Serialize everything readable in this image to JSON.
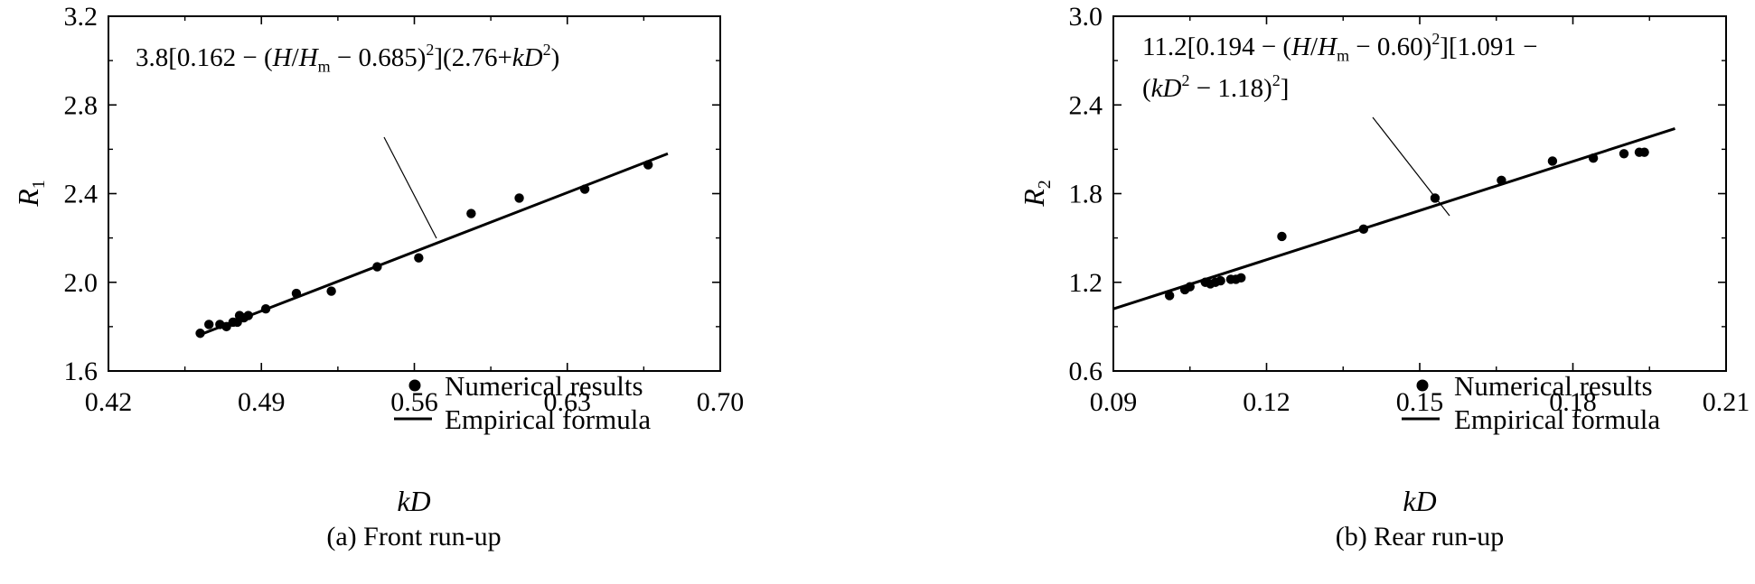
{
  "chart_data": [
    {
      "type": "scatter",
      "caption": "(a) Front run-up",
      "xlabel": "kD",
      "ylabel": "R",
      "ylabel_sub": "1",
      "xlim": [
        0.42,
        0.7
      ],
      "ylim": [
        1.6,
        3.2
      ],
      "x_ticks": [
        0.42,
        0.49,
        0.56,
        0.63,
        0.7
      ],
      "x_tick_labels": [
        "0.42",
        "0.49",
        "0.56",
        "0.63",
        "0.70"
      ],
      "y_ticks": [
        1.6,
        2.0,
        2.4,
        2.8,
        3.2
      ],
      "y_tick_labels": [
        "1.6",
        "2.0",
        "2.4",
        "2.8",
        "3.2"
      ],
      "grid": false,
      "legend_position": "bottom-right",
      "series": [
        {
          "name": "Numerical results",
          "kind": "points",
          "x": [
            0.462,
            0.466,
            0.471,
            0.474,
            0.477,
            0.479,
            0.48,
            0.482,
            0.484,
            0.492,
            0.506,
            0.522,
            0.543,
            0.562,
            0.586,
            0.608,
            0.638,
            0.667
          ],
          "y": [
            1.77,
            1.81,
            1.81,
            1.8,
            1.82,
            1.82,
            1.85,
            1.84,
            1.85,
            1.88,
            1.95,
            1.96,
            2.07,
            2.11,
            2.31,
            2.38,
            2.42,
            2.53
          ]
        },
        {
          "name": "Empirical formula",
          "kind": "line",
          "x": [
            0.461,
            0.676
          ],
          "y": [
            1.76,
            2.58
          ]
        }
      ],
      "annotation": {
        "parts": [
          {
            "t": "3.8[0.162 − ("
          },
          {
            "t": "H",
            "i": true
          },
          {
            "t": "/"
          },
          {
            "t": "H",
            "i": true
          },
          {
            "t": "m",
            "sub": true
          },
          {
            "t": " − 0.685)"
          },
          {
            "t": "2",
            "sup": true
          },
          {
            "t": "](2.76+"
          },
          {
            "t": "kD",
            "i": true
          },
          {
            "t": "2",
            "sup": true
          },
          {
            "t": ")"
          }
        ]
      }
    },
    {
      "type": "scatter",
      "caption": "(b) Rear run-up",
      "xlabel": "kD",
      "ylabel": "R",
      "ylabel_sub": "2",
      "xlim": [
        0.09,
        0.21
      ],
      "ylim": [
        0.6,
        3.0
      ],
      "x_ticks": [
        0.09,
        0.12,
        0.15,
        0.18,
        0.21
      ],
      "x_tick_labels": [
        "0.09",
        "0.12",
        "0.15",
        "0.18",
        "0.21"
      ],
      "y_ticks": [
        0.6,
        1.2,
        1.8,
        2.4,
        3.0
      ],
      "y_tick_labels": [
        "0.6",
        "1.2",
        "1.8",
        "2.4",
        "3.0"
      ],
      "grid": false,
      "legend_position": "bottom-right",
      "series": [
        {
          "name": "Numerical results",
          "kind": "points",
          "x": [
            0.101,
            0.104,
            0.105,
            0.108,
            0.109,
            0.11,
            0.111,
            0.113,
            0.114,
            0.115,
            0.123,
            0.139,
            0.153,
            0.166,
            0.176,
            0.184,
            0.19,
            0.193,
            0.194
          ],
          "y": [
            1.11,
            1.15,
            1.17,
            1.2,
            1.19,
            1.2,
            1.21,
            1.22,
            1.22,
            1.23,
            1.51,
            1.56,
            1.77,
            1.89,
            2.02,
            2.04,
            2.07,
            2.08,
            2.08
          ]
        },
        {
          "name": "Empirical formula",
          "kind": "line",
          "x": [
            0.09,
            0.2
          ],
          "y": [
            1.02,
            2.24
          ]
        }
      ],
      "annotation": {
        "lines": [
          [
            {
              "t": "11.2[0.194 − ("
            },
            {
              "t": "H",
              "i": true
            },
            {
              "t": "/"
            },
            {
              "t": "H",
              "i": true
            },
            {
              "t": "m",
              "sub": true
            },
            {
              "t": " − 0.60)"
            },
            {
              "t": "2",
              "sup": true
            },
            {
              "t": "][1.091 −"
            }
          ],
          [
            {
              "t": "("
            },
            {
              "t": "kD",
              "i": true
            },
            {
              "t": "2",
              "sup": true
            },
            {
              "t": " − 1.18)"
            },
            {
              "t": "2",
              "sup": true
            },
            {
              "t": "]"
            }
          ]
        ]
      }
    }
  ]
}
